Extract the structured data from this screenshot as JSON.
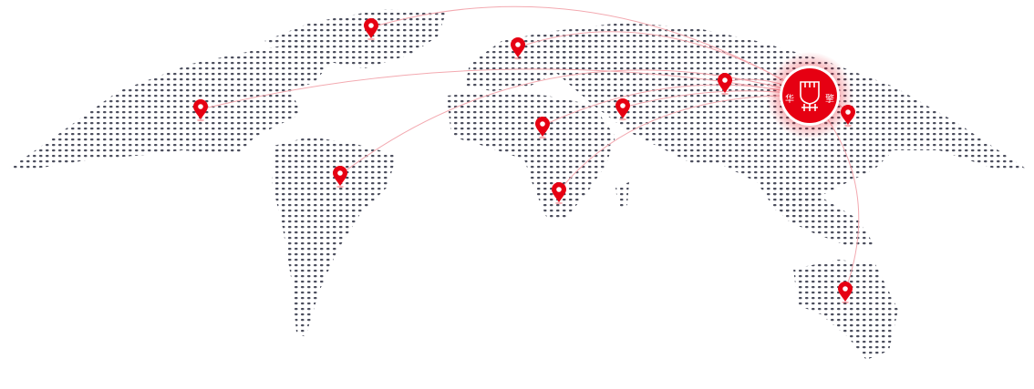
{
  "colors": {
    "accent": "#e60012",
    "dots": "#4a4d5c",
    "arc": "#f3a9b0"
  },
  "hub": {
    "logo_text": [
      "华",
      "擎"
    ],
    "icon": "raised-fist-icon"
  },
  "pins": [
    {
      "id": "greenland",
      "icon": "map-pin-icon"
    },
    {
      "id": "scandinavia",
      "icon": "map-pin-icon"
    },
    {
      "id": "north-america",
      "icon": "map-pin-icon"
    },
    {
      "id": "south-america",
      "icon": "map-pin-icon"
    },
    {
      "id": "west-africa",
      "icon": "map-pin-icon"
    },
    {
      "id": "middle-east",
      "icon": "map-pin-icon"
    },
    {
      "id": "central-asia",
      "icon": "map-pin-icon"
    },
    {
      "id": "southern-africa",
      "icon": "map-pin-icon"
    },
    {
      "id": "japan",
      "icon": "map-pin-icon"
    },
    {
      "id": "australia",
      "icon": "map-pin-icon"
    }
  ]
}
